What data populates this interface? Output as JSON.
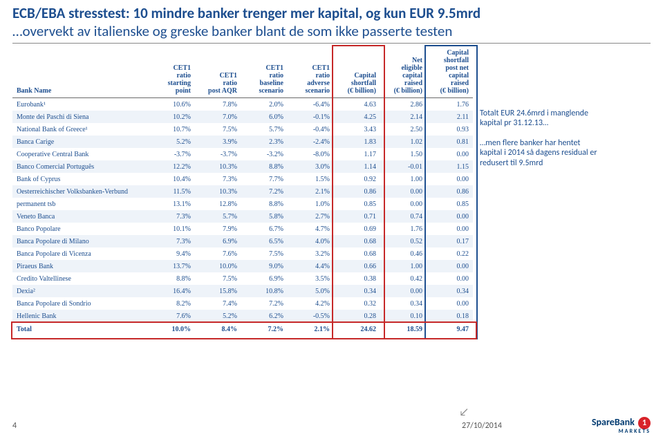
{
  "title": {
    "line1": "ECB/EBA stresstest: 10 mindre banker trenger mer kapital, og kun EUR 9.5mrd",
    "line2": "…overvekt av italienske og greske banker blant de som ikke passerte testen"
  },
  "columns": [
    "Bank Name",
    "CET1 ratio starting point",
    "CET1 ratio post AQR",
    "CET1 ratio baseline scenario",
    "CET1 ratio adverse scenario",
    "Capital shortfall (€ billion)",
    "Net eligible capital raised (€ billion)",
    "Capital shortfall post net capital raised (€ billion)"
  ],
  "rows": [
    {
      "name": "Eurobank¹",
      "v": [
        "10.6%",
        "7.8%",
        "2.0%",
        "-6.4%",
        "4.63",
        "2.86",
        "1.76"
      ]
    },
    {
      "name": "Monte dei Paschi di Siena",
      "v": [
        "10.2%",
        "7.0%",
        "6.0%",
        "-0.1%",
        "4.25",
        "2.14",
        "2.11"
      ]
    },
    {
      "name": "National Bank of Greece¹",
      "v": [
        "10.7%",
        "7.5%",
        "5.7%",
        "-0.4%",
        "3.43",
        "2.50",
        "0.93"
      ]
    },
    {
      "name": "Banca Carige",
      "v": [
        "5.2%",
        "3.9%",
        "2.3%",
        "-2.4%",
        "1.83",
        "1.02",
        "0.81"
      ]
    },
    {
      "name": "Cooperative Central Bank",
      "v": [
        "-3.7%",
        "-3.7%",
        "-3.2%",
        "-8.0%",
        "1.17",
        "1.50",
        "0.00"
      ]
    },
    {
      "name": "Banco Comercial Português",
      "v": [
        "12.2%",
        "10.3%",
        "8.8%",
        "3.0%",
        "1.14",
        "-0.01",
        "1.15"
      ]
    },
    {
      "name": "Bank of Cyprus",
      "v": [
        "10.4%",
        "7.3%",
        "7.7%",
        "1.5%",
        "0.92",
        "1.00",
        "0.00"
      ]
    },
    {
      "name": "Oesterreichischer Volksbanken-Verbund",
      "v": [
        "11.5%",
        "10.3%",
        "7.2%",
        "2.1%",
        "0.86",
        "0.00",
        "0.86"
      ]
    },
    {
      "name": "permanent tsb",
      "v": [
        "13.1%",
        "12.8%",
        "8.8%",
        "1.0%",
        "0.85",
        "0.00",
        "0.85"
      ]
    },
    {
      "name": "Veneto Banca",
      "v": [
        "7.3%",
        "5.7%",
        "5.8%",
        "2.7%",
        "0.71",
        "0.74",
        "0.00"
      ]
    },
    {
      "name": "Banco Popolare",
      "v": [
        "10.1%",
        "7.9%",
        "6.7%",
        "4.7%",
        "0.69",
        "1.76",
        "0.00"
      ]
    },
    {
      "name": "Banca Popolare di Milano",
      "v": [
        "7.3%",
        "6.9%",
        "6.5%",
        "4.0%",
        "0.68",
        "0.52",
        "0.17"
      ]
    },
    {
      "name": "Banca Popolare di Vicenza",
      "v": [
        "9.4%",
        "7.6%",
        "7.5%",
        "3.2%",
        "0.68",
        "0.46",
        "0.22"
      ]
    },
    {
      "name": "Piraeus Bank",
      "v": [
        "13.7%",
        "10.0%",
        "9.0%",
        "4.4%",
        "0.66",
        "1.00",
        "0.00"
      ]
    },
    {
      "name": "Credito Valtellinese",
      "v": [
        "8.8%",
        "7.5%",
        "6.9%",
        "3.5%",
        "0.38",
        "0.42",
        "0.00"
      ]
    },
    {
      "name": "Dexia²",
      "v": [
        "16.4%",
        "15.8%",
        "10.8%",
        "5.0%",
        "0.34",
        "0.00",
        "0.34"
      ]
    },
    {
      "name": "Banca Popolare di Sondrio",
      "v": [
        "8.2%",
        "7.4%",
        "7.2%",
        "4.2%",
        "0.32",
        "0.34",
        "0.00"
      ]
    },
    {
      "name": "Hellenic Bank",
      "v": [
        "7.6%",
        "5.2%",
        "6.2%",
        "-0.5%",
        "0.28",
        "0.10",
        "0.18"
      ]
    }
  ],
  "total": {
    "name": "Total",
    "v": [
      "10.0%",
      "8.4%",
      "7.2%",
      "2.1%",
      "24.62",
      "18.59",
      "9.47"
    ]
  },
  "sidenotes": {
    "note1": "Totalt EUR 24.6mrd i manglende kapital pr 31.12.13…",
    "note2": "…men flere banker har hentet kapital i 2014 så dagens residual er redusert til 9.5mrd"
  },
  "footer": {
    "page": "4",
    "date": "27/10/2014",
    "logo_text": "SpareBank",
    "logo_sub": "MARKETS",
    "logo_num": "1"
  },
  "style": {
    "accent": "#1d4e8f",
    "alt_row": "#eef3f9",
    "box_red": "#c62828",
    "box_blue": "#1d4e8f",
    "bg": "#ffffff"
  }
}
